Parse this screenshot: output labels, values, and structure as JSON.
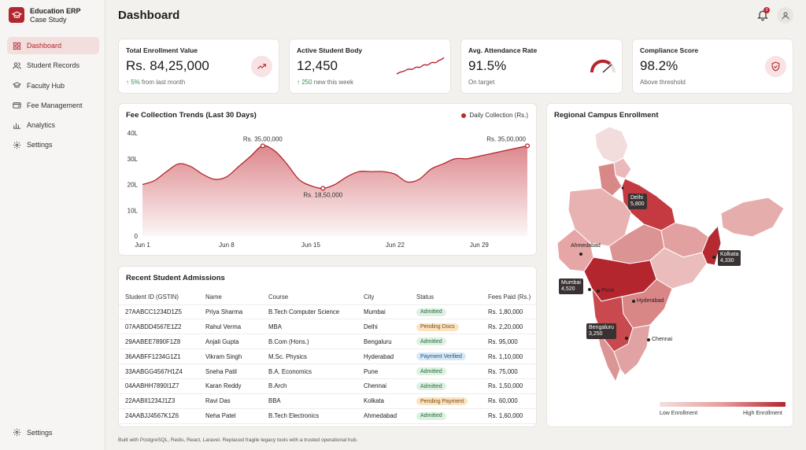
{
  "app": {
    "title": "Education ERP",
    "subtitle": "Case Study"
  },
  "sidebar": {
    "items": [
      {
        "label": "Dashboard",
        "icon": "dashboard-icon",
        "active": true
      },
      {
        "label": "Student Records",
        "icon": "users-icon"
      },
      {
        "label": "Faculty Hub",
        "icon": "graduation-cap-icon"
      },
      {
        "label": "Fee Management",
        "icon": "wallet-icon"
      },
      {
        "label": "Analytics",
        "icon": "bar-chart-icon"
      },
      {
        "label": "Settings",
        "icon": "gear-icon"
      }
    ],
    "bottom_label": "Settings"
  },
  "header": {
    "title": "Dashboard",
    "notification_count": "3"
  },
  "kpis": [
    {
      "title": "Total Enrollment Value",
      "value": "Rs. 84,25,000",
      "delta": "↑ 5%",
      "delta_text": " from last month",
      "icon": "trending-up-icon"
    },
    {
      "title": "Active Student Body",
      "value": "12,450",
      "delta": "↑ 250",
      "delta_text": " new this week",
      "icon": "sparkline-icon"
    },
    {
      "title": "Avg. Attendance Rate",
      "value": "91.5%",
      "delta": "",
      "delta_text": "On target",
      "icon": "gauge-icon"
    },
    {
      "title": "Compliance Score",
      "value": "98.2%",
      "delta": "",
      "delta_text": "Above threshold",
      "icon": "shield-check-icon"
    }
  ],
  "fee_chart": {
    "title": "Fee Collection Trends (Last 30 Days)",
    "legend": "Daily Collection (Rs.)",
    "annotations": [
      "Rs. 35,00,000",
      "Rs. 18,50,000",
      "Rs. 35,00,000"
    ]
  },
  "chart_data": {
    "type": "area",
    "title": "Fee Collection Trends (Last 30 Days)",
    "series": [
      {
        "name": "Daily Collection (Rs.)",
        "values": [
          20,
          21.5,
          25,
          28,
          27,
          24,
          22,
          23,
          27,
          31,
          35,
          33,
          28,
          22,
          19.5,
          18.5,
          20,
          23,
          25,
          25,
          25,
          24,
          21,
          22,
          26,
          28,
          30,
          30,
          31,
          32,
          33,
          34,
          35
        ]
      }
    ],
    "x": [
      1,
      2,
      3,
      4,
      5,
      6,
      7,
      8,
      9,
      10,
      11,
      12,
      13,
      14,
      15,
      16,
      17,
      18,
      19,
      20,
      21,
      22,
      23,
      24,
      25,
      26,
      27,
      28,
      29,
      30,
      31,
      32,
      33
    ],
    "x_tick_labels": [
      "Jun 1",
      "Jun 8",
      "Jun 15",
      "Jun 22",
      "Jun 29"
    ],
    "y_tick_labels": [
      "0",
      "10L",
      "20L",
      "30L",
      "40L"
    ],
    "ylim": [
      0,
      40
    ],
    "color": "#b3262e",
    "grid": false,
    "legend_position": "top-right"
  },
  "admissions": {
    "title": "Recent Student Admissions",
    "columns": [
      "Student ID (GSTIN)",
      "Name",
      "Course",
      "City",
      "Status",
      "Fees Paid (Rs.)"
    ],
    "rows": [
      [
        "27AABCC1234D1Z5",
        "Priya Sharma",
        "B.Tech Computer Science",
        "Mumbai",
        "Admitted",
        "Rs. 1,80,000"
      ],
      [
        "07AABDD4567E1Z2",
        "Rahul Verma",
        "MBA",
        "Delhi",
        "Pending Docs",
        "Rs. 2,20,000"
      ],
      [
        "29AABEE7890F1Z8",
        "Anjali Gupta",
        "B.Com (Hons.)",
        "Bengaluru",
        "Admitted",
        "Rs. 95,000"
      ],
      [
        "36AABFF1234G1Z1",
        "Vikram Singh",
        "M.Sc. Physics",
        "Hyderabad",
        "Payment Verified",
        "Rs. 1,10,000"
      ],
      [
        "33AABGG4567H1Z4",
        "Sneha Patil",
        "B.A. Economics",
        "Pune",
        "Admitted",
        "Rs. 75,000"
      ],
      [
        "04AABHH7890I1Z7",
        "Karan Reddy",
        "B.Arch",
        "Chennai",
        "Admitted",
        "Rs. 1,50,000"
      ],
      [
        "22AABII1234J1Z3",
        "Ravi Das",
        "BBA",
        "Kolkata",
        "Pending Payment",
        "Rs. 60,000"
      ],
      [
        "24AABJJ4567K1Z6",
        "Neha Patel",
        "B.Tech Electronics",
        "Ahmedabad",
        "Admitted",
        "Rs. 1,60,000"
      ]
    ]
  },
  "map": {
    "title": "Regional Campus Enrollment",
    "cities": {
      "delhi": "Delhi",
      "delhi_val": "5,800",
      "kolkata": "Kolkata",
      "kolkata_val": "4,330",
      "mumbai": "Mumbai",
      "mumbai_val": "4,520",
      "bengaluru": "Bengaluru",
      "bengaluru_val": "3,250",
      "ahmedabad": "Ahmedabad",
      "pune": "Pune",
      "hyderabad": "Hyderabad",
      "chennai": "Chennai"
    },
    "legend_low": "Low Enrollment",
    "legend_high": "High Enrollment"
  },
  "footer": "Built with PostgreSQL, Redis, React, Laravel. Replaced fragile legacy tools with a trusted operational hub."
}
